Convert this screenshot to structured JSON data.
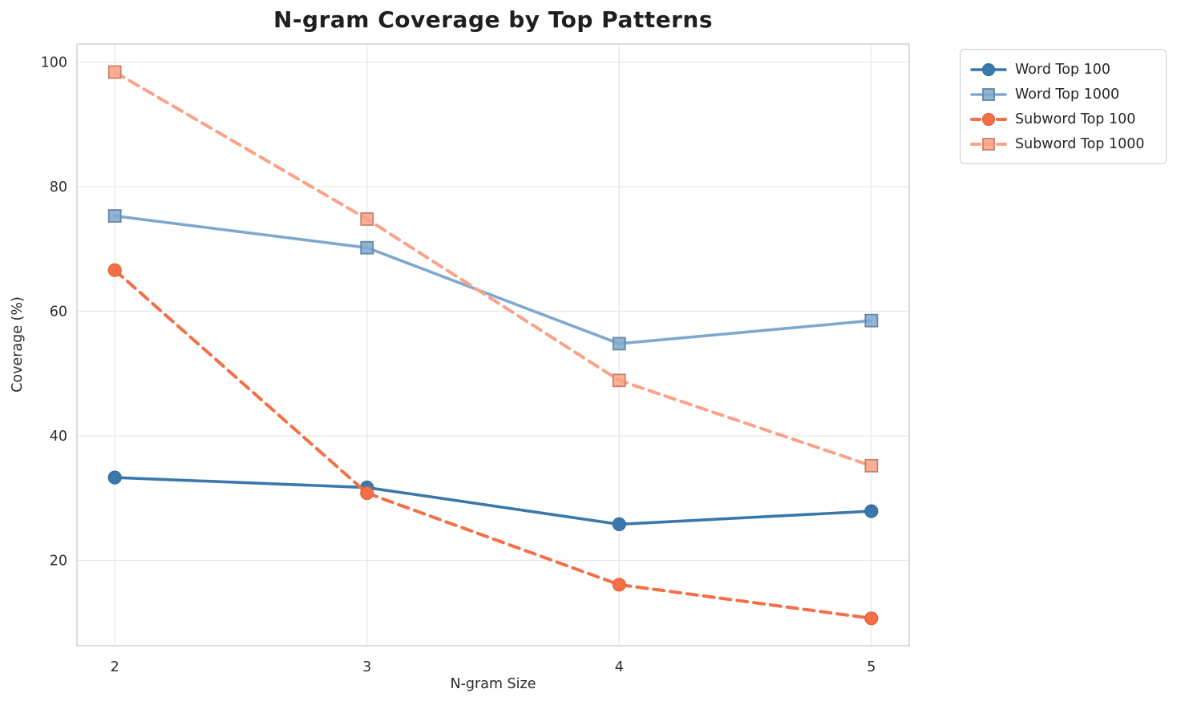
{
  "chart_data": {
    "type": "line",
    "title": "N-gram Coverage by Top Patterns",
    "xlabel": "N-gram Size",
    "ylabel": "Coverage (%)",
    "x": [
      2,
      3,
      4,
      5
    ],
    "x_ticks": [
      "2",
      "3",
      "4",
      "5"
    ],
    "y_ticks": [
      "20",
      "40",
      "60",
      "80",
      "100"
    ],
    "y_tick_values": [
      20,
      40,
      60,
      80,
      100
    ],
    "xlim": [
      1.85,
      5.15
    ],
    "ylim": [
      6.3,
      102.9
    ],
    "grid": true,
    "legend_position": "outside-upper-right",
    "series": [
      {
        "name": "Word Top 100",
        "values": [
          33.3,
          31.7,
          25.8,
          27.9
        ],
        "color": "#3a78ab",
        "marker": "circle",
        "line_style": "solid"
      },
      {
        "name": "Word Top 1000",
        "values": [
          75.3,
          70.2,
          54.8,
          58.5
        ],
        "color": "#7fa8cf",
        "marker": "square",
        "line_style": "solid"
      },
      {
        "name": "Subword Top 100",
        "values": [
          66.6,
          30.8,
          16.1,
          10.7
        ],
        "color": "#f46e46",
        "marker": "circle",
        "line_style": "dashed"
      },
      {
        "name": "Subword Top 1000",
        "values": [
          98.4,
          74.8,
          48.9,
          35.2
        ],
        "color": "#faa287",
        "marker": "square",
        "line_style": "dashed"
      }
    ],
    "style": {
      "grid_color": "#e8e8e8",
      "spine_color": "#d0d0d0",
      "background": "#ffffff",
      "text_color": "#262626"
    }
  }
}
